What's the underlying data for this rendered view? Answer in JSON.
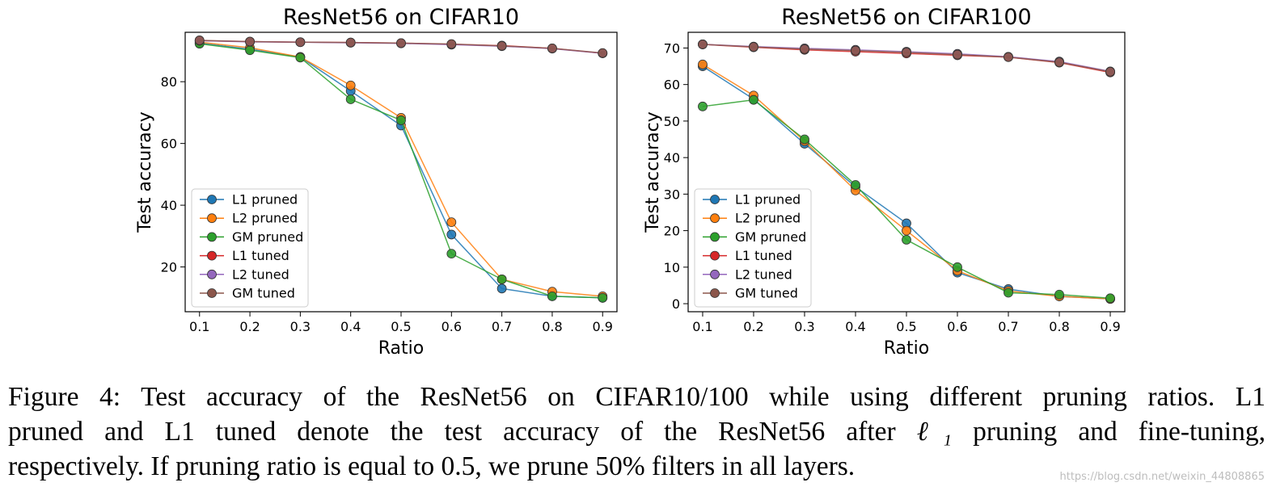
{
  "chart_data": [
    {
      "type": "line",
      "title": "ResNet56 on CIFAR10",
      "xlabel": "Ratio",
      "ylabel": "Test accuracy",
      "x": [
        0.1,
        0.2,
        0.3,
        0.4,
        0.5,
        0.6,
        0.7,
        0.8,
        0.9
      ],
      "x_tick_labels": [
        "0.1",
        "0.2",
        "0.3",
        "0.4",
        "0.5",
        "0.6",
        "0.7",
        "0.8",
        "0.9"
      ],
      "ylim": [
        5.5,
        96
      ],
      "y_ticks": [
        20,
        40,
        60,
        80
      ],
      "y_tick_labels": [
        "20",
        "40",
        "60",
        "80"
      ],
      "legend_position": "lower-left",
      "series": [
        {
          "name": "L1 pruned",
          "color": "#1f77b4",
          "values": [
            92.5,
            90.5,
            88.0,
            77.0,
            65.8,
            30.5,
            13.0,
            10.5,
            10.0
          ]
        },
        {
          "name": "L2 pruned",
          "color": "#ff7f0e",
          "values": [
            92.8,
            91.0,
            88.0,
            78.8,
            68.3,
            34.5,
            16.0,
            12.0,
            10.5
          ]
        },
        {
          "name": "GM pruned",
          "color": "#2ca02c",
          "values": [
            92.3,
            90.2,
            87.8,
            74.3,
            67.5,
            24.3,
            16.0,
            10.5,
            10.0
          ]
        },
        {
          "name": "L1 tuned",
          "color": "#d62728",
          "values": [
            93.3,
            93.0,
            92.8,
            92.7,
            92.5,
            92.1,
            91.7,
            90.8,
            89.2
          ]
        },
        {
          "name": "L2 tuned",
          "color": "#9467bd",
          "values": [
            93.3,
            92.9,
            92.8,
            92.6,
            92.4,
            92.0,
            91.5,
            90.7,
            89.2
          ]
        },
        {
          "name": "GM tuned",
          "color": "#8c564b",
          "values": [
            93.4,
            93.0,
            92.8,
            92.7,
            92.5,
            92.2,
            91.6,
            90.8,
            89.3
          ]
        }
      ]
    },
    {
      "type": "line",
      "title": "ResNet56 on CIFAR100",
      "xlabel": "Ratio",
      "ylabel": "Test accuracy",
      "x": [
        0.1,
        0.2,
        0.3,
        0.4,
        0.5,
        0.6,
        0.7,
        0.8,
        0.9
      ],
      "x_tick_labels": [
        "0.1",
        "0.2",
        "0.3",
        "0.4",
        "0.5",
        "0.6",
        "0.7",
        "0.8",
        "0.9"
      ],
      "ylim": [
        -2.2,
        74.3
      ],
      "y_ticks": [
        0,
        10,
        20,
        30,
        40,
        50,
        60,
        70
      ],
      "y_tick_labels": [
        "0",
        "10",
        "20",
        "30",
        "40",
        "50",
        "60",
        "70"
      ],
      "legend_position": "lower-left",
      "series": [
        {
          "name": "L1 pruned",
          "color": "#1f77b4",
          "values": [
            65.0,
            56.0,
            43.8,
            32.0,
            22.0,
            8.5,
            4.0,
            2.0,
            1.3
          ]
        },
        {
          "name": "L2 pruned",
          "color": "#ff7f0e",
          "values": [
            65.5,
            57.0,
            44.5,
            31.0,
            20.0,
            9.0,
            3.5,
            2.0,
            1.3
          ]
        },
        {
          "name": "GM pruned",
          "color": "#2ca02c",
          "values": [
            54.0,
            55.8,
            45.0,
            32.5,
            17.5,
            10.0,
            3.0,
            2.5,
            1.5
          ]
        },
        {
          "name": "L1 tuned",
          "color": "#d62728",
          "values": [
            71.0,
            70.2,
            69.5,
            69.0,
            68.5,
            68.0,
            67.5,
            66.0,
            63.3
          ]
        },
        {
          "name": "L2 tuned",
          "color": "#9467bd",
          "values": [
            71.0,
            70.4,
            69.9,
            69.5,
            69.0,
            68.4,
            67.6,
            66.3,
            63.6
          ]
        },
        {
          "name": "GM tuned",
          "color": "#8c564b",
          "values": [
            71.0,
            70.3,
            69.7,
            69.3,
            68.8,
            68.2,
            67.5,
            66.1,
            63.5
          ]
        }
      ]
    }
  ],
  "caption": {
    "line1": "Figure 4: Test accuracy of the ResNet56 on CIFAR10/100 while using different pruning ratios. L1",
    "line2_a": "pruned and L1 tuned denote the test accuracy of the ResNet56 after ",
    "line2_math": "ℓ₁",
    "line2_b": " pruning and fine-tuning,",
    "line3": "respectively. If pruning ratio is equal to 0.5, we prune 50% filters in all layers."
  },
  "watermark": "https://blog.csdn.net/weixin_44808865"
}
